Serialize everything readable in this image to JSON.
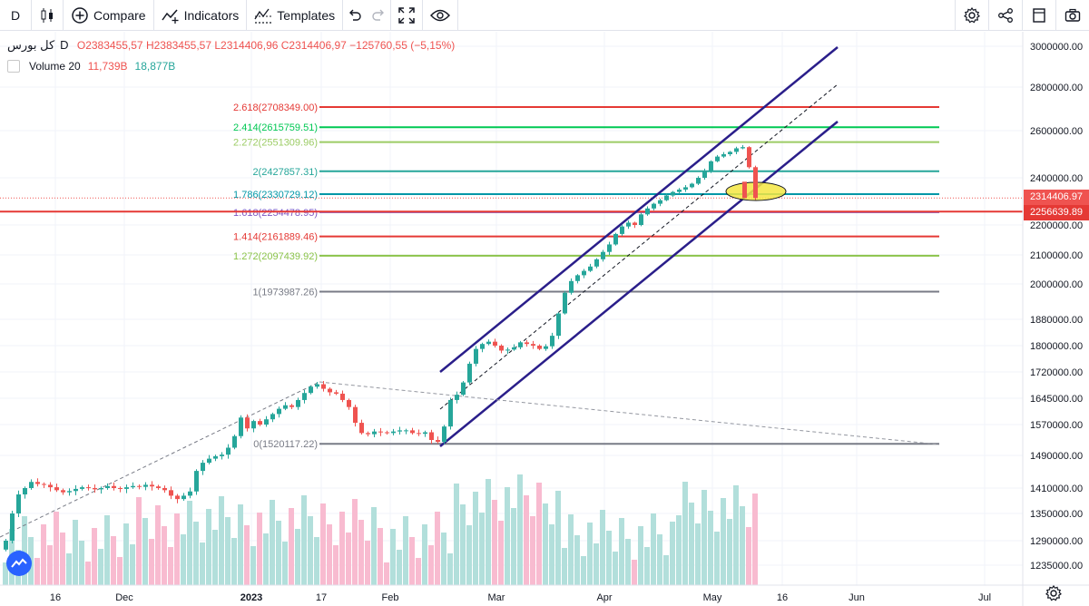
{
  "toolbar": {
    "interval": "D",
    "compare_label": "Compare",
    "indicators_label": "Indicators",
    "templates_label": "Templates"
  },
  "legend": {
    "symbol": "کل بورس",
    "interval": "D",
    "ohlc": "O2383455,57  H2383455,57  L2314406,96  C2314406,97  −125760,55 (−5,15%)",
    "volume_label": "Volume 20",
    "volume_value_1": "11,739B",
    "volume_value_2": "18,877B"
  },
  "price_tags": {
    "last": "2314406.97",
    "level": "2256639.89"
  },
  "colors": {
    "up": "#26a69a",
    "down": "#ef5350",
    "vol_up": "#b2dfdb",
    "vol_down": "#f8bbd0",
    "channel": "#2a1e8a",
    "highlight": "#f5e642"
  },
  "chart_data": {
    "type": "candlestick",
    "title": "کل بورس",
    "x_ticks": [
      "16",
      "Dec",
      "2023",
      "17",
      "Feb",
      "Mar",
      "Apr",
      "May",
      "16",
      "Jun",
      "Jul"
    ],
    "x_tick_positions": [
      61,
      137,
      277,
      354,
      430,
      547,
      666,
      785,
      862,
      944,
      1085
    ],
    "y_ticks": [
      "3000000.00",
      "2800000.00",
      "2600000.00",
      "2400000.00",
      "2200000.00",
      "2100000.00",
      "2000000.00",
      "1880000.00",
      "1800000.00",
      "1720000.00",
      "1645000.00",
      "1570000.00",
      "1490000.00",
      "1410000.00",
      "1350000.00",
      "1290000.00",
      "1235000.00"
    ],
    "y_tick_values": [
      3000000,
      2800000,
      2600000,
      2400000,
      2200000,
      2100000,
      2000000,
      1880000,
      1800000,
      1720000,
      1645000,
      1570000,
      1490000,
      1410000,
      1350000,
      1290000,
      1235000
    ],
    "fib_levels": [
      {
        "ratio": "2.618",
        "price": 2708349.0,
        "label": "2.618(2708349.00)",
        "color": "#e53935"
      },
      {
        "ratio": "2.414",
        "price": 2615759.51,
        "label": "2.414(2615759.51)",
        "color": "#00c853"
      },
      {
        "ratio": "2.272",
        "price": 2551309.96,
        "label": "2.272(2551309.96)",
        "color": "#9ccc65"
      },
      {
        "ratio": "2",
        "price": 2427857.31,
        "label": "2(2427857.31)",
        "color": "#26a69a"
      },
      {
        "ratio": "1.786",
        "price": 2330729.12,
        "label": "1.786(2330729.12)",
        "color": "#0097a7"
      },
      {
        "ratio": "1.618",
        "price": 2254478.95,
        "label": "1.618(2254478.95)",
        "color": "#7e57c2"
      },
      {
        "ratio": "1.414",
        "price": 2161889.46,
        "label": "1.414(2161889.46)",
        "color": "#e53935"
      },
      {
        "ratio": "1.272",
        "price": 2097439.92,
        "label": "1.272(2097439.92)",
        "color": "#8bc34a"
      },
      {
        "ratio": "1",
        "price": 1973987.26,
        "label": "1(1973987.26)",
        "color": "#787b86"
      },
      {
        "ratio": "0",
        "price": 1520117.22,
        "label": "0(1520117.22)",
        "color": "#787b86"
      }
    ],
    "horizontal_level": 2256639.89,
    "last_price": 2314406.97,
    "candles_close": [
      1290000,
      1350000,
      1395000,
      1410000,
      1425000,
      1420000,
      1418000,
      1412000,
      1405000,
      1400000,
      1403000,
      1408000,
      1412000,
      1410000,
      1407000,
      1410000,
      1415000,
      1410000,
      1408000,
      1412000,
      1415000,
      1413000,
      1418000,
      1414000,
      1410000,
      1405000,
      1392000,
      1384000,
      1392000,
      1402000,
      1452000,
      1472000,
      1482000,
      1488000,
      1492000,
      1510000,
      1540000,
      1590000,
      1560000,
      1580000,
      1570000,
      1585000,
      1600000,
      1615000,
      1625000,
      1620000,
      1640000,
      1660000,
      1678000,
      1685000,
      1672000,
      1662000,
      1658000,
      1640000,
      1620000,
      1575000,
      1548000,
      1545000,
      1552000,
      1550000,
      1548000,
      1552000,
      1555000,
      1555000,
      1548000,
      1546000,
      1550000,
      1530000,
      1525000,
      1565000,
      1640000,
      1655000,
      1690000,
      1745000,
      1790000,
      1805000,
      1812000,
      1800000,
      1785000,
      1788000,
      1795000,
      1810000,
      1805000,
      1800000,
      1790000,
      1798000,
      1830000,
      1900000,
      1970000,
      2010000,
      2030000,
      2045000,
      2060000,
      2085000,
      2110000,
      2135000,
      2170000,
      2195000,
      2210000,
      2200000,
      2245000,
      2270000,
      2290000,
      2305000,
      2325000,
      2340000,
      2350000,
      2360000,
      2375000,
      2400000,
      2430000,
      2470000,
      2490000,
      2500000,
      2510000,
      2525000,
      2530000,
      2445000,
      2314407
    ]
  }
}
